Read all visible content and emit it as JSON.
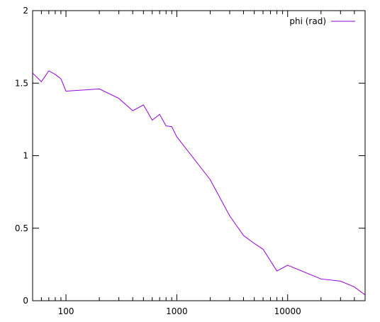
{
  "chart_data": {
    "type": "line",
    "title": "",
    "xlabel": "",
    "ylabel": "",
    "x_scale": "log",
    "xlim": [
      50,
      50000
    ],
    "ylim": [
      0,
      2
    ],
    "grid": false,
    "legend_placement": "top-right",
    "x_tick_labels": [
      {
        "value": 100,
        "label": "100"
      },
      {
        "value": 1000,
        "label": "1000"
      },
      {
        "value": 10000,
        "label": "10000"
      }
    ],
    "y_tick_labels": [
      {
        "value": 0,
        "label": "0"
      },
      {
        "value": 0.5,
        "label": "0.5"
      },
      {
        "value": 1,
        "label": "1"
      },
      {
        "value": 1.5,
        "label": "1.5"
      },
      {
        "value": 2,
        "label": "2"
      }
    ],
    "series": [
      {
        "name": "phi (rad)",
        "color": "#9400d3",
        "x": [
          50,
          60,
          70,
          80,
          90,
          100,
          200,
          300,
          400,
          500,
          600,
          700,
          800,
          900,
          1000,
          2000,
          3000,
          4000,
          5000,
          6000,
          8000,
          10000,
          20000,
          30000,
          40000,
          50000
        ],
        "y": [
          1.57,
          1.51,
          1.585,
          1.56,
          1.53,
          1.445,
          1.46,
          1.395,
          1.31,
          1.35,
          1.245,
          1.285,
          1.205,
          1.2,
          1.13,
          0.835,
          0.585,
          0.45,
          0.395,
          0.355,
          0.205,
          0.245,
          0.15,
          0.135,
          0.095,
          0.04
        ]
      }
    ]
  }
}
